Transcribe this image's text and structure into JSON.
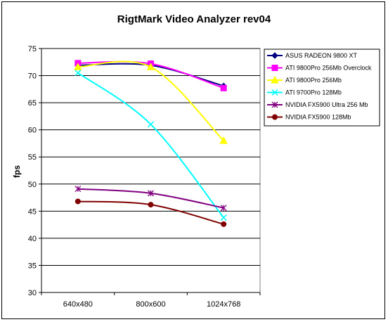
{
  "chart_data": {
    "type": "line",
    "title": "RigtMark Video Analyzer rev04",
    "xlabel": "",
    "ylabel": "fps",
    "categories": [
      "640x480",
      "800x600",
      "1024x768"
    ],
    "ylim": [
      30,
      75
    ],
    "yticks": [
      30,
      35,
      40,
      45,
      50,
      55,
      60,
      65,
      70,
      75
    ],
    "grid": "horizontal",
    "legend_position": "right",
    "plot_background": "#ffffff",
    "series": [
      {
        "name": "ASUS RADEON 9800 XT",
        "values": [
          71.9,
          71.9,
          68.1
        ],
        "color": "#000080",
        "marker": "diamond"
      },
      {
        "name": "ATI 9800Pro 256Mb Overclock",
        "values": [
          72.3,
          72.2,
          67.7
        ],
        "color": "#ff00ff",
        "marker": "square"
      },
      {
        "name": "ATI 9800Pro 256Mb",
        "values": [
          71.6,
          71.6,
          58.0
        ],
        "color": "#ffff00",
        "marker": "triangle"
      },
      {
        "name": "ATI 9700Pro 128Mb",
        "values": [
          70.5,
          61.0,
          43.8
        ],
        "color": "#00ffff",
        "marker": "x"
      },
      {
        "name": "NVIDIA FX5900 Ultra 256 Mb",
        "values": [
          49.1,
          48.3,
          45.6
        ],
        "color": "#800080",
        "marker": "star"
      },
      {
        "name": "NVIDIA FX5900 128Mb",
        "values": [
          46.8,
          46.2,
          42.6
        ],
        "color": "#800000",
        "marker": "circle"
      }
    ]
  }
}
